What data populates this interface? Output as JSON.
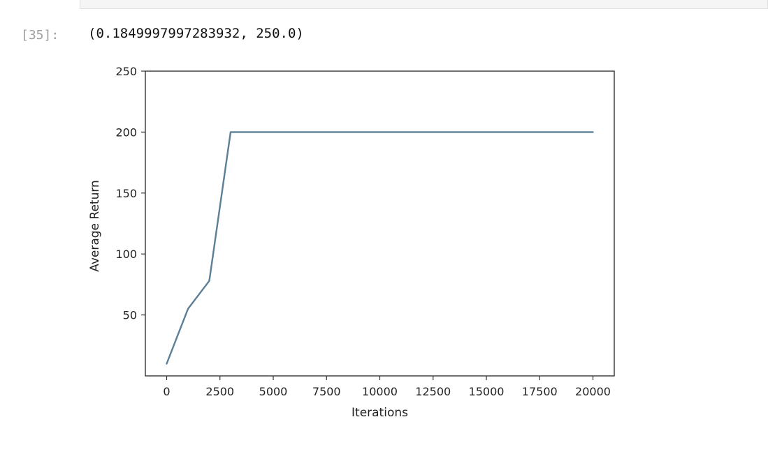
{
  "cell": {
    "prompt": "[35]:",
    "output": "(0.1849997997283932, 250.0)"
  },
  "chart_data": {
    "type": "line",
    "title": "",
    "xlabel": "Iterations",
    "ylabel": "Average Return",
    "xlim": [
      -1000,
      21000
    ],
    "ylim": [
      0,
      250
    ],
    "xticks": [
      0,
      2500,
      5000,
      7500,
      10000,
      12500,
      15000,
      17500,
      20000
    ],
    "yticks": [
      50,
      100,
      150,
      200,
      250
    ],
    "grid": false,
    "color": "#5b7f96",
    "x": [
      0,
      1000,
      2000,
      3000,
      4000,
      5000,
      6000,
      7000,
      8000,
      9000,
      10000,
      11000,
      12000,
      13000,
      14000,
      15000,
      16000,
      17000,
      18000,
      19000,
      20000
    ],
    "y": [
      10,
      55,
      78,
      200,
      200,
      200,
      200,
      200,
      200,
      200,
      200,
      200,
      200,
      200,
      200,
      200,
      200,
      200,
      200,
      200,
      200
    ]
  }
}
